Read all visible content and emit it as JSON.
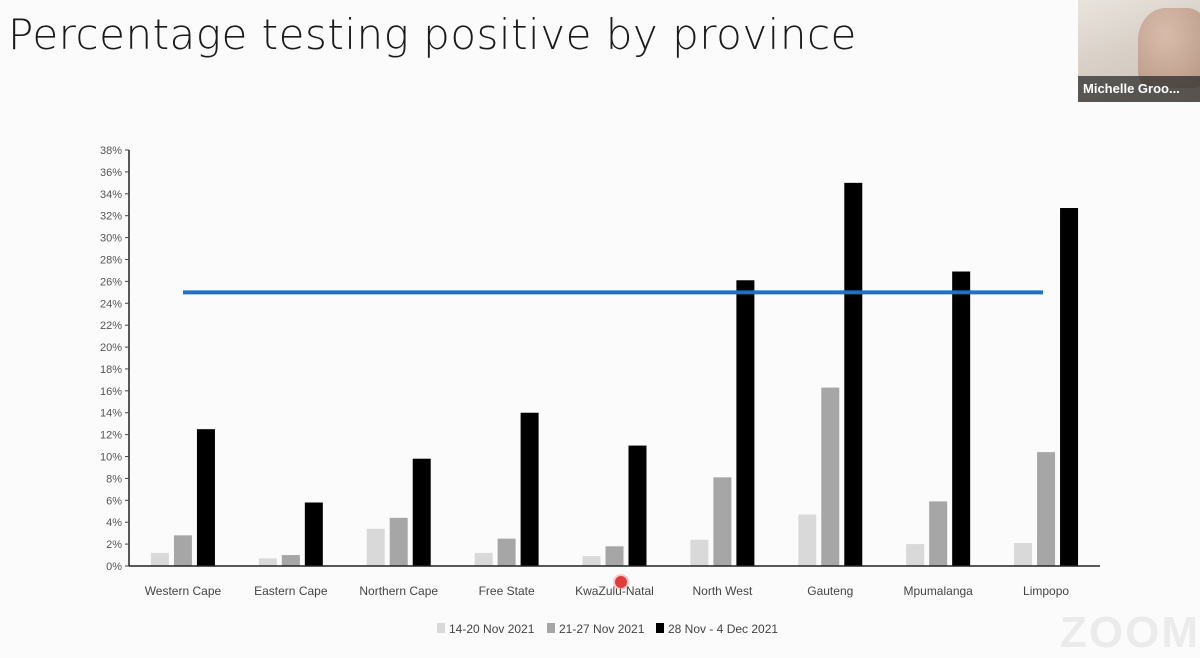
{
  "slide": {
    "title": "Percentage testing positive by province"
  },
  "participant": {
    "name": "Michelle Groo..."
  },
  "watermark": "ZOOM",
  "chart_data": {
    "type": "bar",
    "title": "Percentage testing positive by province",
    "categories": [
      "Western Cape",
      "Eastern Cape",
      "Northern Cape",
      "Free State",
      "KwaZulu-Natal",
      "North West",
      "Gauteng",
      "Mpumalanga",
      "Limpopo"
    ],
    "series": [
      {
        "name": "14-20 Nov 2021",
        "color": "#d9d9d9",
        "values": [
          1.2,
          0.7,
          3.4,
          1.2,
          0.9,
          2.4,
          4.7,
          2.0,
          2.1
        ]
      },
      {
        "name": "21-27 Nov 2021",
        "color": "#a6a6a6",
        "values": [
          2.8,
          1.0,
          4.4,
          2.5,
          1.8,
          8.1,
          16.3,
          5.9,
          10.4
        ]
      },
      {
        "name": "28 Nov - 4 Dec 2021",
        "color": "#000000",
        "values": [
          12.5,
          5.8,
          9.8,
          14.0,
          11.0,
          26.1,
          35.0,
          26.9,
          32.7
        ]
      }
    ],
    "reference_line": {
      "value": 25,
      "color": "#1f6fc5"
    },
    "ylim": [
      0,
      38
    ],
    "yticks": [
      0,
      2,
      4,
      6,
      8,
      10,
      12,
      14,
      16,
      18,
      20,
      22,
      24,
      26,
      28,
      30,
      32,
      34,
      36,
      38
    ],
    "ytick_labels": [
      "0%",
      "2%",
      "4%",
      "6%",
      "8%",
      "10%",
      "12%",
      "14%",
      "16%",
      "18%",
      "20%",
      "22%",
      "24%",
      "26%",
      "28%",
      "30%",
      "32%",
      "34%",
      "36%",
      "38%"
    ],
    "grid": false,
    "legend_position": "bottom-center"
  }
}
